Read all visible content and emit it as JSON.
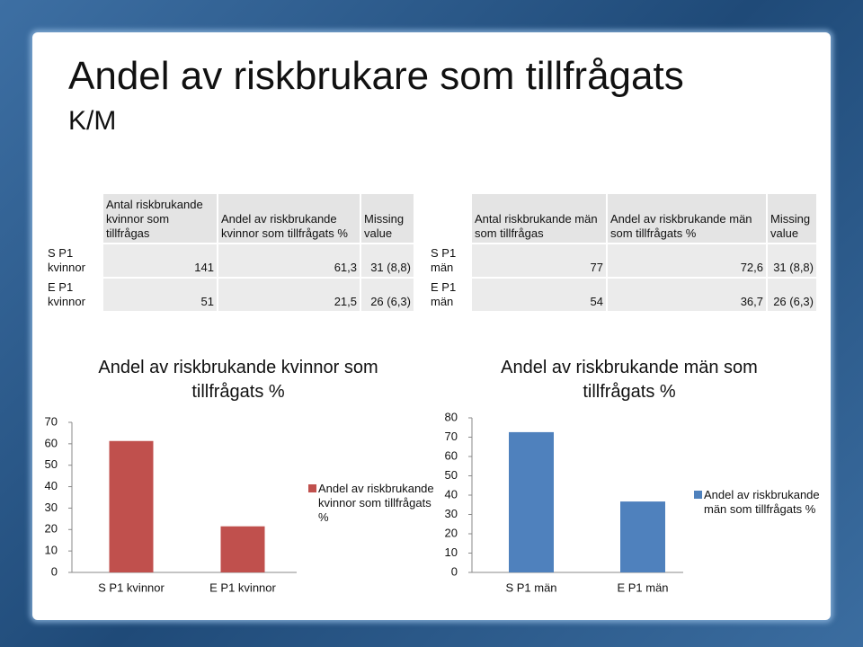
{
  "title": "Andel av riskbrukare som tillfrågats",
  "subtitle": "K/M",
  "tables": [
    {
      "columns": [
        "Antal riskbrukande kvinnor som tillfrågas",
        "Andel av riskbrukande kvinnor som tillfrågats %",
        "Missing value"
      ],
      "rows": [
        {
          "label": "S P1 kvinnor",
          "cells": [
            "141",
            "61,3",
            "31 (8,8)"
          ]
        },
        {
          "label": "E P1 kvinnor",
          "cells": [
            "51",
            "21,5",
            "26 (6,3)"
          ]
        }
      ]
    },
    {
      "columns": [
        "Antal riskbrukande män som tillfrågas",
        "Andel av riskbrukande män som tillfrågats %",
        "Missing value"
      ],
      "rows": [
        {
          "label": "S P1 män",
          "cells": [
            "77",
            "72,6",
            "31 (8,8)"
          ]
        },
        {
          "label": "E P1 män",
          "cells": [
            "54",
            "36,7",
            "26 (6,3)"
          ]
        }
      ]
    }
  ],
  "chart_data": [
    {
      "type": "bar",
      "title": "Andel av riskbrukande kvinnor som tillfrågats %",
      "categories": [
        "S P1 kvinnor",
        "E P1 kvinnor"
      ],
      "series": [
        {
          "name": "Andel av riskbrukande kvinnor som tillfrågats %",
          "color": "#c0504d",
          "values": [
            61.3,
            21.5
          ]
        }
      ],
      "ylim": [
        0,
        70
      ],
      "yticks": [
        0,
        10,
        20,
        30,
        40,
        50,
        60,
        70
      ],
      "legend": "right"
    },
    {
      "type": "bar",
      "title": "Andel av riskbrukande män som tillfrågats %",
      "categories": [
        "S P1 män",
        "E P1 män"
      ],
      "series": [
        {
          "name": "Andel av riskbrukande män som tillfrågats %",
          "color": "#4f81bd",
          "values": [
            72.6,
            36.7
          ]
        }
      ],
      "ylim": [
        0,
        80
      ],
      "yticks": [
        0,
        10,
        20,
        30,
        40,
        50,
        60,
        70,
        80
      ],
      "legend": "right"
    }
  ]
}
